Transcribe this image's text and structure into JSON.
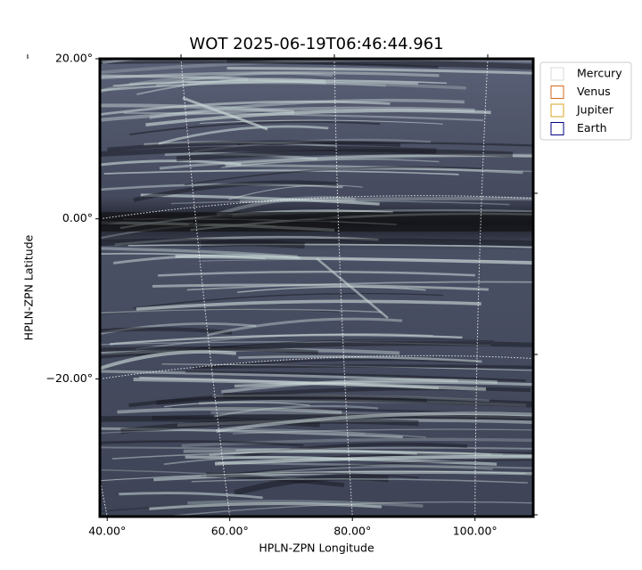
{
  "chart_data": {
    "type": "image",
    "title": "WOT 2025-06-19T06:46:44.961",
    "x_label": "HPLN-ZPN Longitude",
    "y_label": "HPLN-ZPN Latitude",
    "xlim": [
      38.8,
      109.5
    ],
    "ylim": [
      -37.2,
      20
    ],
    "xticks": [
      {
        "value": 40,
        "label": "40.00°"
      },
      {
        "value": 60,
        "label": "60.00°"
      },
      {
        "value": 80,
        "label": "80.00°"
      },
      {
        "value": 100,
        "label": "100.00°"
      }
    ],
    "yticks": [
      {
        "value": 20,
        "label": "20.00°"
      },
      {
        "value": 0,
        "label": "0.00°"
      },
      {
        "value": -20,
        "label": "−20.00°"
      }
    ],
    "grid": true,
    "legend": "upper right",
    "series": [
      {
        "name": "Mercury",
        "color": "#d9d9d9"
      },
      {
        "name": "Venus",
        "color": "#d2691e"
      },
      {
        "name": "Jupiter",
        "color": "#daa520"
      },
      {
        "name": "Earth",
        "color": "#000080"
      }
    ]
  }
}
